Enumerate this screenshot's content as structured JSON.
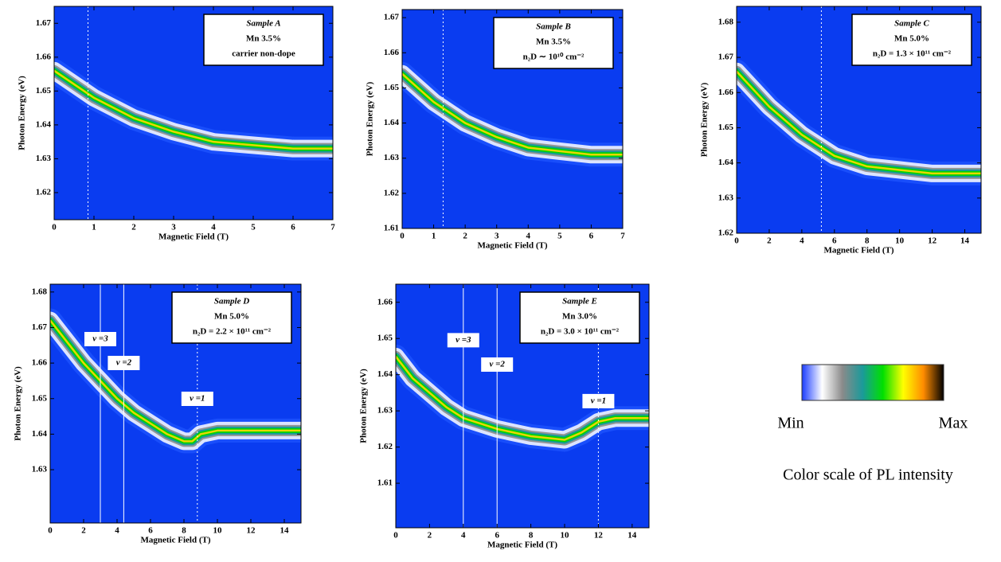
{
  "chart_data": [
    {
      "type": "line",
      "xlabel": "Magnetic Field (T)",
      "ylabel": "Photon Energy (eV)",
      "annotation": [
        "Sample A",
        "Mn 3.5%",
        "carrier non-dope"
      ],
      "xlim": [
        0,
        7
      ],
      "xticks": [
        0,
        1,
        2,
        3,
        4,
        5,
        6,
        7
      ],
      "ylim": [
        1.612,
        1.675
      ],
      "yticks": [
        1.62,
        1.63,
        1.64,
        1.65,
        1.66,
        1.67
      ],
      "background": "#0a3cf0",
      "x": [
        0,
        0.5,
        1,
        1.5,
        2,
        3,
        4,
        5,
        6,
        7
      ],
      "series": [
        {
          "color": "#e8d800",
          "values": [
            1.656,
            1.652,
            1.648,
            1.645,
            1.642,
            1.638,
            1.635,
            1.634,
            1.633,
            1.633
          ]
        }
      ],
      "markers": [
        {
          "x": 0.85,
          "style": "dotted"
        }
      ]
    },
    {
      "type": "line",
      "xlabel": "Magnetic Field (T)",
      "ylabel": "Photon Energy (eV)",
      "annotation": [
        "Sample B",
        "Mn 3.5%",
        "n₂D ∼ 10¹⁰ cm⁻²"
      ],
      "xlim": [
        0,
        7
      ],
      "xticks": [
        0,
        1,
        2,
        3,
        4,
        5,
        6,
        7
      ],
      "ylim": [
        1.61,
        1.6723
      ],
      "yticks": [
        1.61,
        1.62,
        1.63,
        1.64,
        1.65,
        1.66,
        1.67
      ],
      "background": "#0a3cf0",
      "x": [
        0,
        0.5,
        1,
        1.5,
        2,
        3,
        4,
        5,
        6,
        7
      ],
      "series": [
        {
          "color": "#e8d800",
          "values": [
            1.654,
            1.65,
            1.646,
            1.643,
            1.64,
            1.636,
            1.633,
            1.632,
            1.631,
            1.631
          ]
        }
      ],
      "markers": [
        {
          "x": 1.3,
          "style": "dotted"
        }
      ]
    },
    {
      "type": "line",
      "xlabel": "Magnetic Field (T)",
      "ylabel": "Photon Energy (eV)",
      "annotation": [
        "Sample C",
        "Mn 5.0%",
        "n₂D = 1.3 × 10¹¹ cm⁻²"
      ],
      "xlim": [
        0,
        15
      ],
      "xticks": [
        0,
        2,
        4,
        6,
        8,
        10,
        12,
        14
      ],
      "ylim": [
        1.62,
        1.6845
      ],
      "yticks": [
        1.62,
        1.63,
        1.64,
        1.65,
        1.66,
        1.67,
        1.68
      ],
      "background": "#0a3cf0",
      "x": [
        0,
        1,
        2,
        3,
        4,
        5,
        6,
        8,
        10,
        12,
        14,
        15
      ],
      "series": [
        {
          "color": "#e8d800",
          "values": [
            1.666,
            1.661,
            1.656,
            1.652,
            1.648,
            1.645,
            1.642,
            1.639,
            1.638,
            1.637,
            1.637,
            1.637
          ]
        }
      ],
      "markers": [
        {
          "x": 5.2,
          "style": "dotted"
        }
      ]
    },
    {
      "type": "line",
      "xlabel": "Magnetic Field (T)",
      "ylabel": "Photon Energy (eV)",
      "annotation": [
        "Sample D",
        "Mn 5.0%",
        "n₂D = 2.2 × 10¹¹ cm⁻²"
      ],
      "xlim": [
        0,
        15
      ],
      "xticks": [
        0,
        2,
        4,
        6,
        8,
        10,
        12,
        14
      ],
      "ylim": [
        1.615,
        1.6822
      ],
      "yticks": [
        1.63,
        1.64,
        1.65,
        1.66,
        1.67,
        1.68
      ],
      "background": "#0a3cf0",
      "x": [
        0,
        1,
        2,
        3,
        4,
        5,
        6,
        7,
        8,
        8.5,
        9,
        10,
        12,
        14,
        15
      ],
      "series": [
        {
          "color": "#e8d800",
          "values": [
            1.672,
            1.666,
            1.66,
            1.655,
            1.65,
            1.646,
            1.643,
            1.64,
            1.638,
            1.638,
            1.64,
            1.641,
            1.641,
            1.641,
            1.641
          ]
        }
      ],
      "markers": [
        {
          "x": 3,
          "style": "solid",
          "label": "ν =3"
        },
        {
          "x": 4.4,
          "style": "solid",
          "label": "ν =2"
        },
        {
          "x": 8.8,
          "style": "dotted",
          "label": "ν =1"
        }
      ]
    },
    {
      "type": "line",
      "xlabel": "Magnetic Field (T)",
      "ylabel": "Photon Energy (eV)",
      "annotation": [
        "Sample E",
        "Mn 3.0%",
        "n₂D = 3.0 × 10¹¹ cm⁻²"
      ],
      "xlim": [
        0,
        15
      ],
      "xticks": [
        0,
        2,
        4,
        6,
        8,
        10,
        12,
        14
      ],
      "ylim": [
        1.5977,
        1.665
      ],
      "yticks": [
        1.61,
        1.62,
        1.63,
        1.64,
        1.65,
        1.66
      ],
      "background": "#0a3cf0",
      "x": [
        0,
        1,
        2,
        3,
        4,
        6,
        8,
        10,
        11,
        12,
        13,
        14,
        15
      ],
      "series": [
        {
          "color": "#e8d800",
          "values": [
            1.645,
            1.639,
            1.635,
            1.631,
            1.628,
            1.625,
            1.623,
            1.622,
            1.624,
            1.627,
            1.628,
            1.628,
            1.628
          ]
        }
      ],
      "markers": [
        {
          "x": 4,
          "style": "solid",
          "label": "ν =3"
        },
        {
          "x": 6,
          "style": "solid",
          "label": "ν =2"
        },
        {
          "x": 12,
          "style": "dotted",
          "label": "ν =1"
        }
      ]
    }
  ],
  "colorbar": {
    "colors": [
      "#1a3cff",
      "#ffffff",
      "#8a8a8a",
      "#1a9a9a",
      "#00e000",
      "#ffff00",
      "#ff8c00",
      "#000000"
    ],
    "min_label": "Min",
    "max_label": "Max",
    "caption": "Color scale of PL intensity"
  }
}
